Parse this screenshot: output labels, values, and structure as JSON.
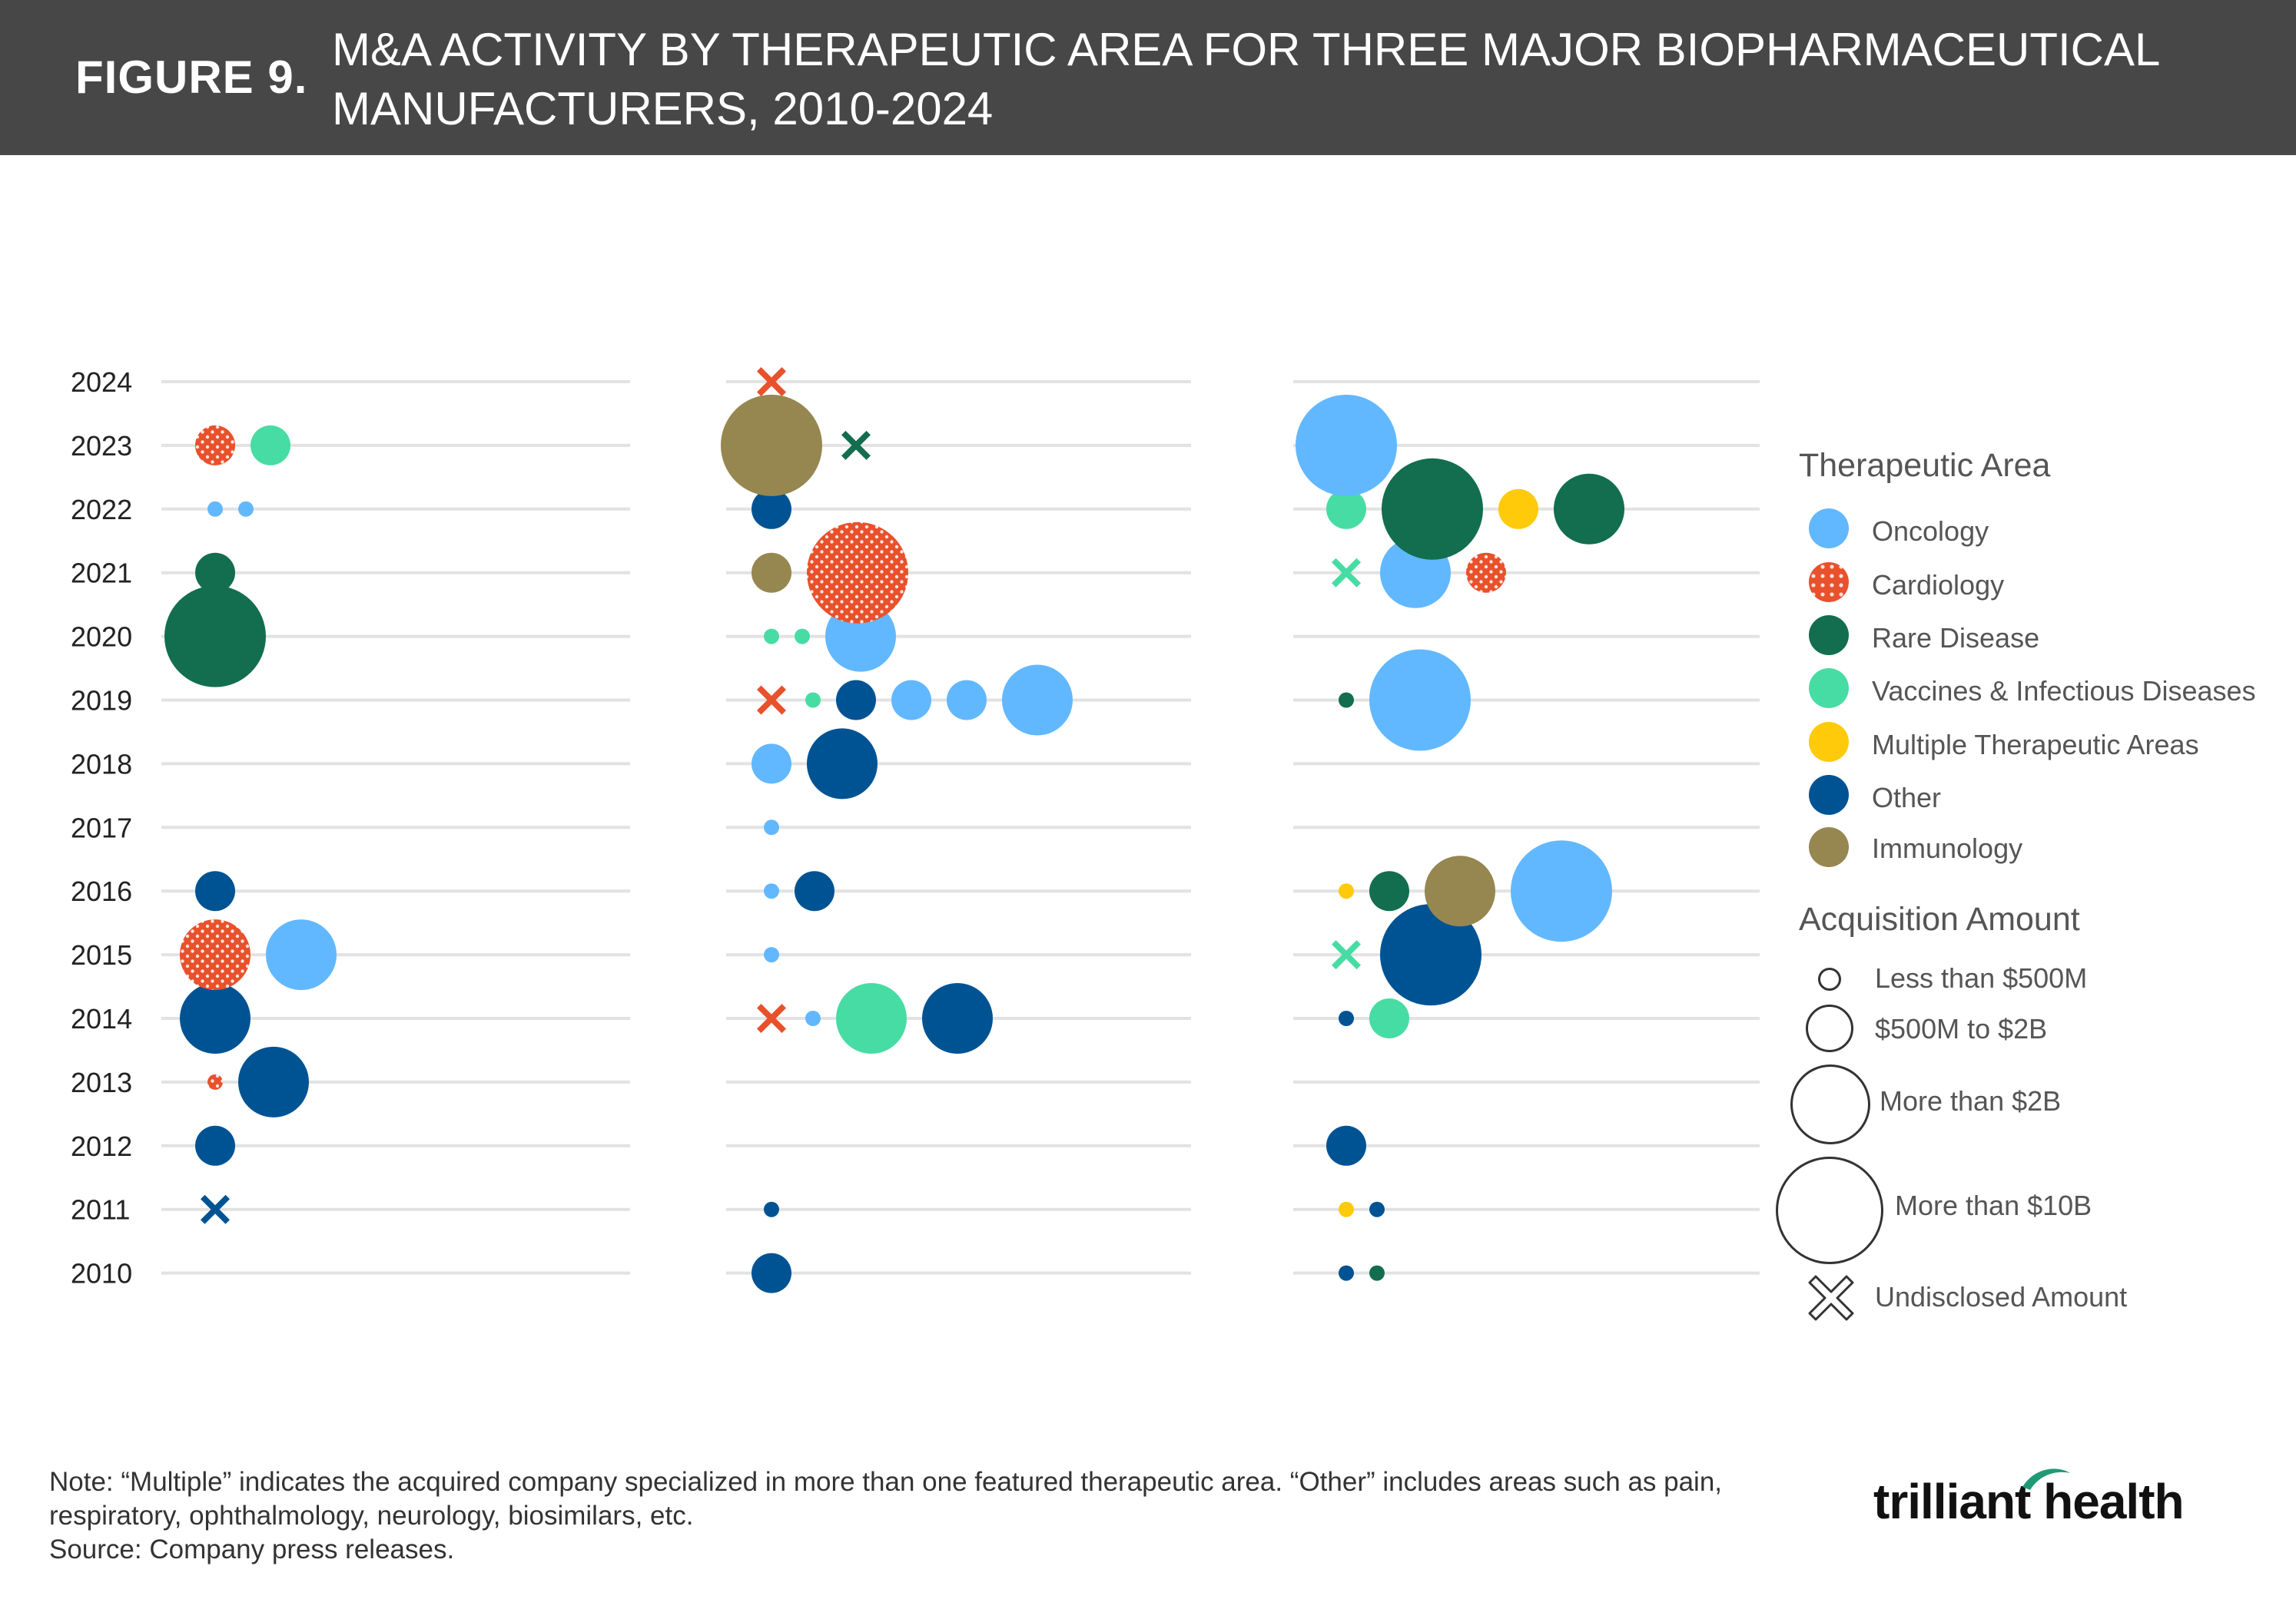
{
  "header": {
    "figure_label": "FIGURE 9.",
    "title_line1": "M&A ACTIVITY BY THERAPEUTIC AREA FOR THREE MAJOR BIOPHARMACEUTICAL",
    "title_line2": "MANUFACTURERS, 2010-2024"
  },
  "colors": {
    "Oncology": "#62B8FF",
    "Cardiology": "#E8512B",
    "Rare Disease": "#126E4E",
    "Vaccines & Infectious Diseases": "#47DCA3",
    "Multiple Therapeutic Areas": "#FFCA0A",
    "Other": "#005393",
    "Immunology": "#968750",
    "gridline": "#E2E2E2",
    "header_bg": "#474747"
  },
  "legend": {
    "area_heading": "Therapeutic Area",
    "areas": [
      {
        "key": "Oncology",
        "label": "Oncology",
        "pattern": "solid"
      },
      {
        "key": "Cardiology",
        "label": "Cardiology",
        "pattern": "dotted"
      },
      {
        "key": "Rare Disease",
        "label": "Rare Disease",
        "pattern": "solid"
      },
      {
        "key": "Vaccines & Infectious Diseases",
        "label": "Vaccines & Infectious Diseases",
        "pattern": "solid"
      },
      {
        "key": "Multiple Therapeutic Areas",
        "label": "Multiple Therapeutic Areas",
        "pattern": "solid"
      },
      {
        "key": "Other",
        "label": "Other",
        "pattern": "solid"
      },
      {
        "key": "Immunology",
        "label": "Immunology",
        "pattern": "solid"
      }
    ],
    "amount_heading": "Acquisition Amount",
    "amounts": [
      {
        "label": "Less than $500M"
      },
      {
        "label": "$500M to $2B"
      },
      {
        "label": "More than $2B"
      },
      {
        "label": "More than $10B"
      },
      {
        "label": "Undisclosed Amount"
      }
    ]
  },
  "chart_data": {
    "type": "scatter",
    "title": "M&A ACTIVITY BY THERAPEUTIC AREA FOR THREE MAJOR BIOPHARMACEUTICAL MANUFACTURERS, 2010-2024",
    "y_categories": [
      "2024",
      "2023",
      "2022",
      "2021",
      "2020",
      "2019",
      "2018",
      "2017",
      "2016",
      "2015",
      "2014",
      "2013",
      "2012",
      "2011",
      "2010"
    ],
    "size_classes": {
      "undisclosed": "Undisclosed Amount",
      "xs": "Less than $500M",
      "s": "$500M to $2B",
      "m": "More than $2B",
      "l": "More than $10B"
    },
    "grid": true,
    "legend_position": "right",
    "panels": [
      {
        "deals": [
          {
            "year": "2023",
            "area": "Cardiology",
            "size": "s"
          },
          {
            "year": "2023",
            "area": "Vaccines & Infectious Diseases",
            "size": "s"
          },
          {
            "year": "2022",
            "area": "Oncology",
            "size": "xs"
          },
          {
            "year": "2022",
            "area": "Oncology",
            "size": "xs"
          },
          {
            "year": "2021",
            "area": "Rare Disease",
            "size": "s"
          },
          {
            "year": "2020",
            "area": "Rare Disease",
            "size": "l"
          },
          {
            "year": "2016",
            "area": "Other",
            "size": "s"
          },
          {
            "year": "2015",
            "area": "Cardiology",
            "size": "m"
          },
          {
            "year": "2015",
            "area": "Oncology",
            "size": "m"
          },
          {
            "year": "2014",
            "area": "Other",
            "size": "m"
          },
          {
            "year": "2013",
            "area": "Cardiology",
            "size": "xs"
          },
          {
            "year": "2013",
            "area": "Other",
            "size": "m"
          },
          {
            "year": "2012",
            "area": "Other",
            "size": "s"
          },
          {
            "year": "2011",
            "area": "Other",
            "size": "undisclosed"
          }
        ]
      },
      {
        "deals": [
          {
            "year": "2024",
            "area": "Cardiology",
            "size": "undisclosed"
          },
          {
            "year": "2023",
            "area": "Immunology",
            "size": "l"
          },
          {
            "year": "2023",
            "area": "Rare Disease",
            "size": "undisclosed"
          },
          {
            "year": "2022",
            "area": "Other",
            "size": "s"
          },
          {
            "year": "2021",
            "area": "Immunology",
            "size": "s"
          },
          {
            "year": "2021",
            "area": "Cardiology",
            "size": "l"
          },
          {
            "year": "2020",
            "area": "Vaccines & Infectious Diseases",
            "size": "xs"
          },
          {
            "year": "2020",
            "area": "Vaccines & Infectious Diseases",
            "size": "xs"
          },
          {
            "year": "2020",
            "area": "Oncology",
            "size": "m"
          },
          {
            "year": "2019",
            "area": "Cardiology",
            "size": "undisclosed"
          },
          {
            "year": "2019",
            "area": "Vaccines & Infectious Diseases",
            "size": "xs"
          },
          {
            "year": "2019",
            "area": "Other",
            "size": "s"
          },
          {
            "year": "2019",
            "area": "Oncology",
            "size": "s"
          },
          {
            "year": "2019",
            "area": "Oncology",
            "size": "s"
          },
          {
            "year": "2019",
            "area": "Oncology",
            "size": "m"
          },
          {
            "year": "2018",
            "area": "Oncology",
            "size": "s"
          },
          {
            "year": "2018",
            "area": "Other",
            "size": "m"
          },
          {
            "year": "2017",
            "area": "Oncology",
            "size": "xs"
          },
          {
            "year": "2016",
            "area": "Oncology",
            "size": "xs"
          },
          {
            "year": "2016",
            "area": "Other",
            "size": "s"
          },
          {
            "year": "2015",
            "area": "Oncology",
            "size": "xs"
          },
          {
            "year": "2014",
            "area": "Cardiology",
            "size": "undisclosed"
          },
          {
            "year": "2014",
            "area": "Oncology",
            "size": "xs"
          },
          {
            "year": "2014",
            "area": "Vaccines & Infectious Diseases",
            "size": "m"
          },
          {
            "year": "2014",
            "area": "Other",
            "size": "m"
          },
          {
            "year": "2011",
            "area": "Other",
            "size": "xs"
          },
          {
            "year": "2010",
            "area": "Other",
            "size": "s"
          }
        ]
      },
      {
        "deals": [
          {
            "year": "2023",
            "area": "Oncology",
            "size": "l"
          },
          {
            "year": "2022",
            "area": "Vaccines & Infectious Diseases",
            "size": "s"
          },
          {
            "year": "2022",
            "area": "Rare Disease",
            "size": "l"
          },
          {
            "year": "2022",
            "area": "Multiple Therapeutic Areas",
            "size": "s"
          },
          {
            "year": "2022",
            "area": "Rare Disease",
            "size": "m"
          },
          {
            "year": "2021",
            "area": "Vaccines & Infectious Diseases",
            "size": "undisclosed"
          },
          {
            "year": "2021",
            "area": "Oncology",
            "size": "m"
          },
          {
            "year": "2021",
            "area": "Cardiology",
            "size": "s"
          },
          {
            "year": "2019",
            "area": "Rare Disease",
            "size": "xs"
          },
          {
            "year": "2019",
            "area": "Oncology",
            "size": "l"
          },
          {
            "year": "2016",
            "area": "Multiple Therapeutic Areas",
            "size": "xs"
          },
          {
            "year": "2016",
            "area": "Rare Disease",
            "size": "s"
          },
          {
            "year": "2016",
            "area": "Immunology",
            "size": "m"
          },
          {
            "year": "2016",
            "area": "Oncology",
            "size": "l"
          },
          {
            "year": "2015",
            "area": "Vaccines & Infectious Diseases",
            "size": "undisclosed"
          },
          {
            "year": "2015",
            "area": "Other",
            "size": "l"
          },
          {
            "year": "2014",
            "area": "Other",
            "size": "xs"
          },
          {
            "year": "2014",
            "area": "Vaccines & Infectious Diseases",
            "size": "s"
          },
          {
            "year": "2012",
            "area": "Other",
            "size": "s"
          },
          {
            "year": "2011",
            "area": "Multiple Therapeutic Areas",
            "size": "xs"
          },
          {
            "year": "2011",
            "area": "Other",
            "size": "xs"
          },
          {
            "year": "2010",
            "area": "Other",
            "size": "xs"
          },
          {
            "year": "2010",
            "area": "Rare Disease",
            "size": "xs"
          }
        ]
      }
    ]
  },
  "notes": {
    "line1": "Note: “Multiple” indicates the acquired company specialized in more than one featured therapeutic area. “Other” includes areas such as pain,",
    "line2": "respiratory, ophthalmology, neurology, biosimilars, etc.",
    "source": "Source: Company press releases."
  },
  "logo": {
    "text": "trilliant health"
  }
}
